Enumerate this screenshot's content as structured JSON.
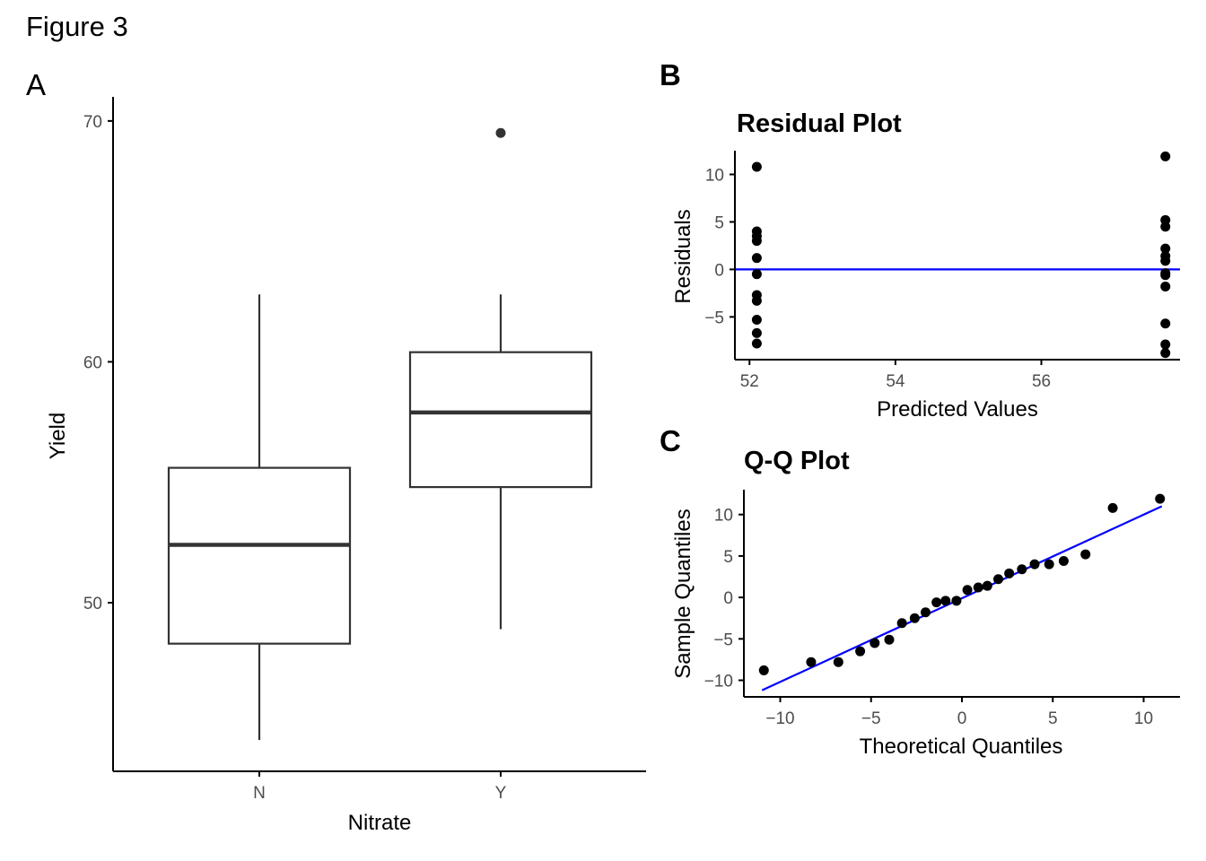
{
  "figure_title": "Figure 3",
  "colors": {
    "ink": "#000000",
    "box": "#333333",
    "tick_text": "#4d4d4d",
    "reference_line": "#0000ff",
    "background": "#ffffff"
  },
  "chart_data": [
    {
      "panel": "A",
      "type": "box",
      "title": "",
      "xlabel": "Nitrate",
      "ylabel": "Yield",
      "categories": [
        "N",
        "Y"
      ],
      "ylim": [
        43,
        71
      ],
      "yticks": [
        50,
        60,
        70
      ],
      "boxes": [
        {
          "category": "N",
          "whisker_low": 44.3,
          "q1": 48.3,
          "median": 52.4,
          "q3": 55.6,
          "whisker_high": 62.8,
          "outliers": []
        },
        {
          "category": "Y",
          "whisker_low": 48.9,
          "q1": 54.8,
          "median": 57.9,
          "q3": 60.4,
          "whisker_high": 62.8,
          "outliers": [
            69.5
          ]
        }
      ],
      "grid": false
    },
    {
      "panel": "B",
      "type": "scatter",
      "title": "Residual Plot",
      "xlabel": "Predicted Values",
      "ylabel": "Residuals",
      "xlim": [
        51.8,
        57.9
      ],
      "ylim": [
        -9.5,
        12.5
      ],
      "xticks": [
        52,
        54,
        56
      ],
      "yticks": [
        -5,
        0,
        5,
        10
      ],
      "hline": 0,
      "points": [
        [
          52.1,
          10.8
        ],
        [
          52.1,
          4.0
        ],
        [
          52.1,
          3.5
        ],
        [
          52.1,
          3.0
        ],
        [
          52.1,
          1.2
        ],
        [
          52.1,
          -0.5
        ],
        [
          52.1,
          -2.7
        ],
        [
          52.1,
          -3.3
        ],
        [
          52.1,
          -5.3
        ],
        [
          52.1,
          -6.7
        ],
        [
          52.1,
          -7.8
        ],
        [
          57.7,
          11.9
        ],
        [
          57.7,
          5.2
        ],
        [
          57.7,
          4.5
        ],
        [
          57.7,
          2.2
        ],
        [
          57.7,
          1.4
        ],
        [
          57.7,
          0.9
        ],
        [
          57.7,
          -0.4
        ],
        [
          57.7,
          -0.6
        ],
        [
          57.7,
          -1.8
        ],
        [
          57.7,
          -5.7
        ],
        [
          57.7,
          -7.9
        ],
        [
          57.7,
          -8.8
        ]
      ],
      "grid": false
    },
    {
      "panel": "C",
      "type": "scatter",
      "title": "Q-Q Plot",
      "xlabel": "Theoretical Quantiles",
      "ylabel": "Sample Quantiles",
      "xlim": [
        -12,
        12
      ],
      "ylim": [
        -12,
        13
      ],
      "xticks": [
        -10,
        -5,
        0,
        5,
        10
      ],
      "yticks": [
        -10,
        -5,
        0,
        5,
        10
      ],
      "reference_line": [
        [
          -11,
          -11.2
        ],
        [
          11,
          11.0
        ]
      ],
      "points": [
        [
          -10.9,
          -8.8
        ],
        [
          -8.3,
          -7.8
        ],
        [
          -6.8,
          -7.8
        ],
        [
          -5.6,
          -6.5
        ],
        [
          -4.8,
          -5.5
        ],
        [
          -4.0,
          -5.1
        ],
        [
          -3.3,
          -3.1
        ],
        [
          -2.6,
          -2.5
        ],
        [
          -2.0,
          -1.8
        ],
        [
          -1.4,
          -0.6
        ],
        [
          -0.9,
          -0.4
        ],
        [
          -0.3,
          -0.4
        ],
        [
          0.3,
          0.9
        ],
        [
          0.9,
          1.2
        ],
        [
          1.4,
          1.4
        ],
        [
          2.0,
          2.2
        ],
        [
          2.6,
          2.9
        ],
        [
          3.3,
          3.4
        ],
        [
          4.0,
          4.0
        ],
        [
          4.8,
          4.0
        ],
        [
          5.6,
          4.4
        ],
        [
          6.8,
          5.2
        ],
        [
          8.3,
          10.8
        ],
        [
          10.9,
          11.9
        ]
      ],
      "grid": false
    }
  ]
}
